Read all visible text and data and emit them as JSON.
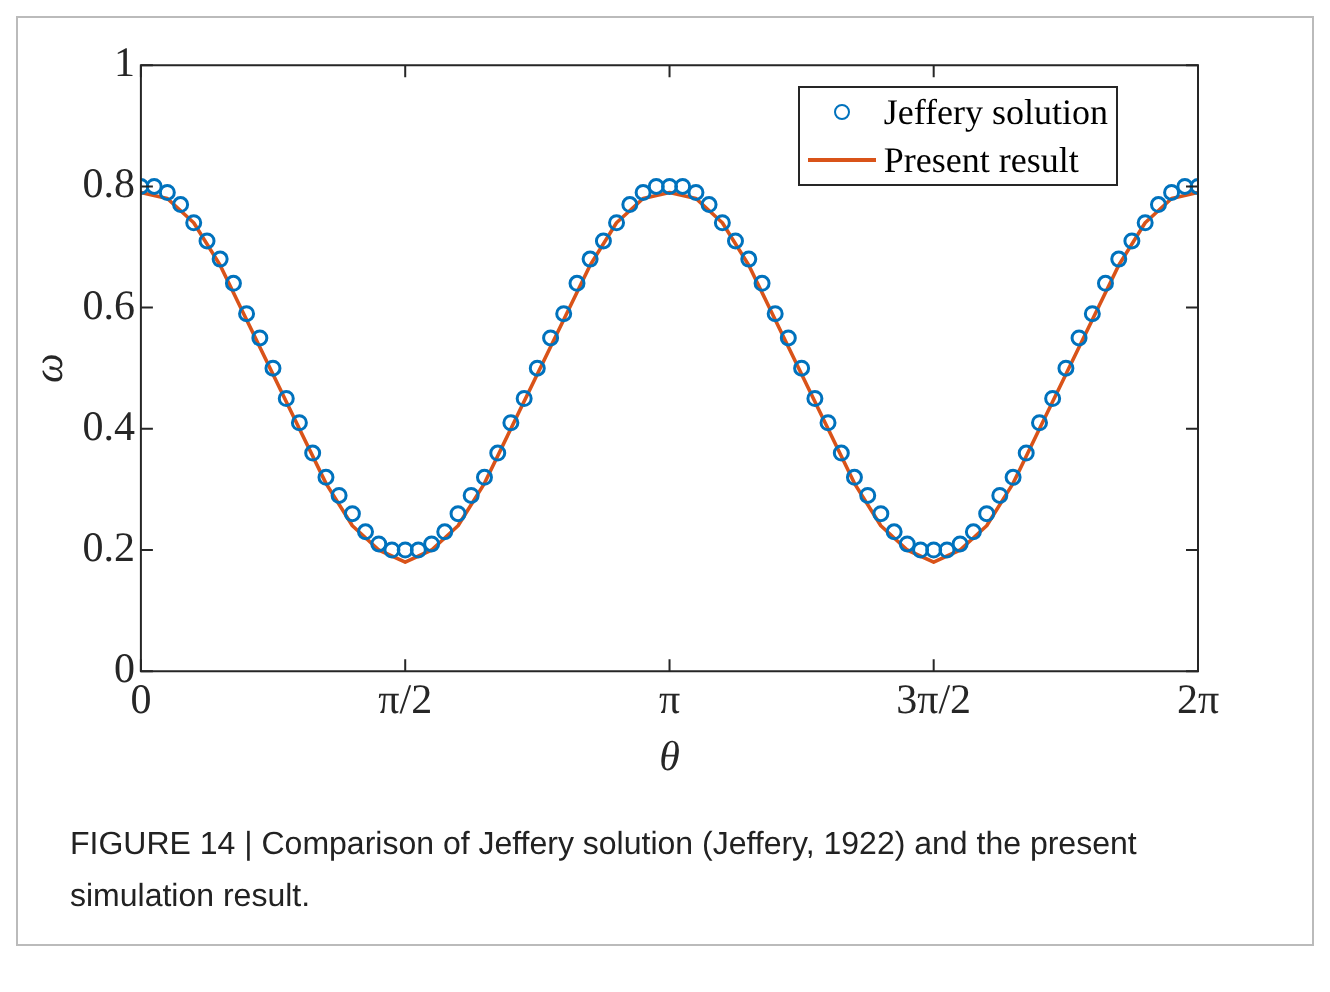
{
  "chart_data": {
    "type": "scatter",
    "xlabel": "θ",
    "ylabel": "ω",
    "xlim": [
      0,
      6.283
    ],
    "ylim": [
      0,
      1
    ],
    "xticks": [
      0,
      {
        "value": 1.571,
        "label": "π/2"
      },
      {
        "value": 3.142,
        "label": "π"
      },
      {
        "value": 4.712,
        "label": "3π/2"
      },
      {
        "value": 6.283,
        "label": "2π"
      }
    ],
    "yticks": [
      0,
      0.2,
      0.4,
      0.6,
      0.8,
      1
    ],
    "grid": false,
    "legend": "top right",
    "annotations": [
      "FIGURE 14 | Comparison of Jeffery solution (Jeffery, 1922) and the present simulation result."
    ],
    "series": [
      {
        "name": "Jeffery solution",
        "type": "scatter",
        "marker": "circle",
        "color": "#0072bd",
        "x": [
          0,
          0.079,
          0.157,
          0.236,
          0.314,
          0.393,
          0.471,
          0.55,
          0.628,
          0.707,
          0.785,
          0.864,
          0.942,
          1.021,
          1.1,
          1.178,
          1.257,
          1.335,
          1.414,
          1.492,
          1.571,
          1.649,
          1.728,
          1.806,
          1.885,
          1.963,
          2.042,
          2.121,
          2.199,
          2.278,
          2.356,
          2.435,
          2.513,
          2.592,
          2.67,
          2.749,
          2.827,
          2.906,
          2.985,
          3.063,
          3.142,
          3.22,
          3.299,
          3.377,
          3.456,
          3.534,
          3.613,
          3.692,
          3.77,
          3.848,
          3.927,
          4.006,
          4.084,
          4.163,
          4.241,
          4.32,
          4.398,
          4.477,
          4.555,
          4.634,
          4.712,
          4.791,
          4.869,
          4.948,
          5.027,
          5.105,
          5.184,
          5.262,
          5.341,
          5.419,
          5.498,
          5.576,
          5.655,
          5.733,
          5.812,
          5.89,
          5.969,
          6.048,
          6.126,
          6.205,
          6.283
        ],
        "values": [
          0.8,
          0.8,
          0.79,
          0.77,
          0.74,
          0.71,
          0.68,
          0.64,
          0.59,
          0.55,
          0.5,
          0.45,
          0.41,
          0.36,
          0.32,
          0.29,
          0.26,
          0.23,
          0.21,
          0.2,
          0.2,
          0.2,
          0.21,
          0.23,
          0.26,
          0.29,
          0.32,
          0.36,
          0.41,
          0.45,
          0.5,
          0.55,
          0.59,
          0.64,
          0.68,
          0.71,
          0.74,
          0.77,
          0.79,
          0.8,
          0.8,
          0.8,
          0.79,
          0.77,
          0.74,
          0.71,
          0.68,
          0.64,
          0.59,
          0.55,
          0.5,
          0.45,
          0.41,
          0.36,
          0.32,
          0.29,
          0.26,
          0.23,
          0.21,
          0.2,
          0.2,
          0.2,
          0.21,
          0.23,
          0.26,
          0.29,
          0.32,
          0.36,
          0.41,
          0.45,
          0.5,
          0.55,
          0.59,
          0.64,
          0.68,
          0.71,
          0.74,
          0.77,
          0.79,
          0.8,
          0.8
        ]
      },
      {
        "name": "Present result",
        "type": "line",
        "marker": "none",
        "line_style": "solid",
        "color": "#d95319",
        "x": [
          0,
          0.157,
          0.314,
          0.471,
          0.628,
          0.785,
          0.942,
          1.1,
          1.257,
          1.414,
          1.571,
          1.728,
          1.885,
          2.042,
          2.199,
          2.356,
          2.513,
          2.67,
          2.827,
          2.985,
          3.142,
          3.299,
          3.456,
          3.613,
          3.77,
          3.927,
          4.084,
          4.241,
          4.398,
          4.555,
          4.712,
          4.869,
          5.027,
          5.184,
          5.341,
          5.498,
          5.655,
          5.812,
          5.969,
          6.126,
          6.283
        ],
        "values": [
          0.79,
          0.78,
          0.74,
          0.67,
          0.58,
          0.49,
          0.4,
          0.31,
          0.24,
          0.2,
          0.18,
          0.2,
          0.24,
          0.31,
          0.4,
          0.49,
          0.58,
          0.67,
          0.74,
          0.78,
          0.79,
          0.78,
          0.74,
          0.67,
          0.58,
          0.49,
          0.4,
          0.31,
          0.24,
          0.2,
          0.18,
          0.2,
          0.24,
          0.31,
          0.4,
          0.49,
          0.58,
          0.67,
          0.74,
          0.78,
          0.79
        ]
      }
    ]
  }
}
